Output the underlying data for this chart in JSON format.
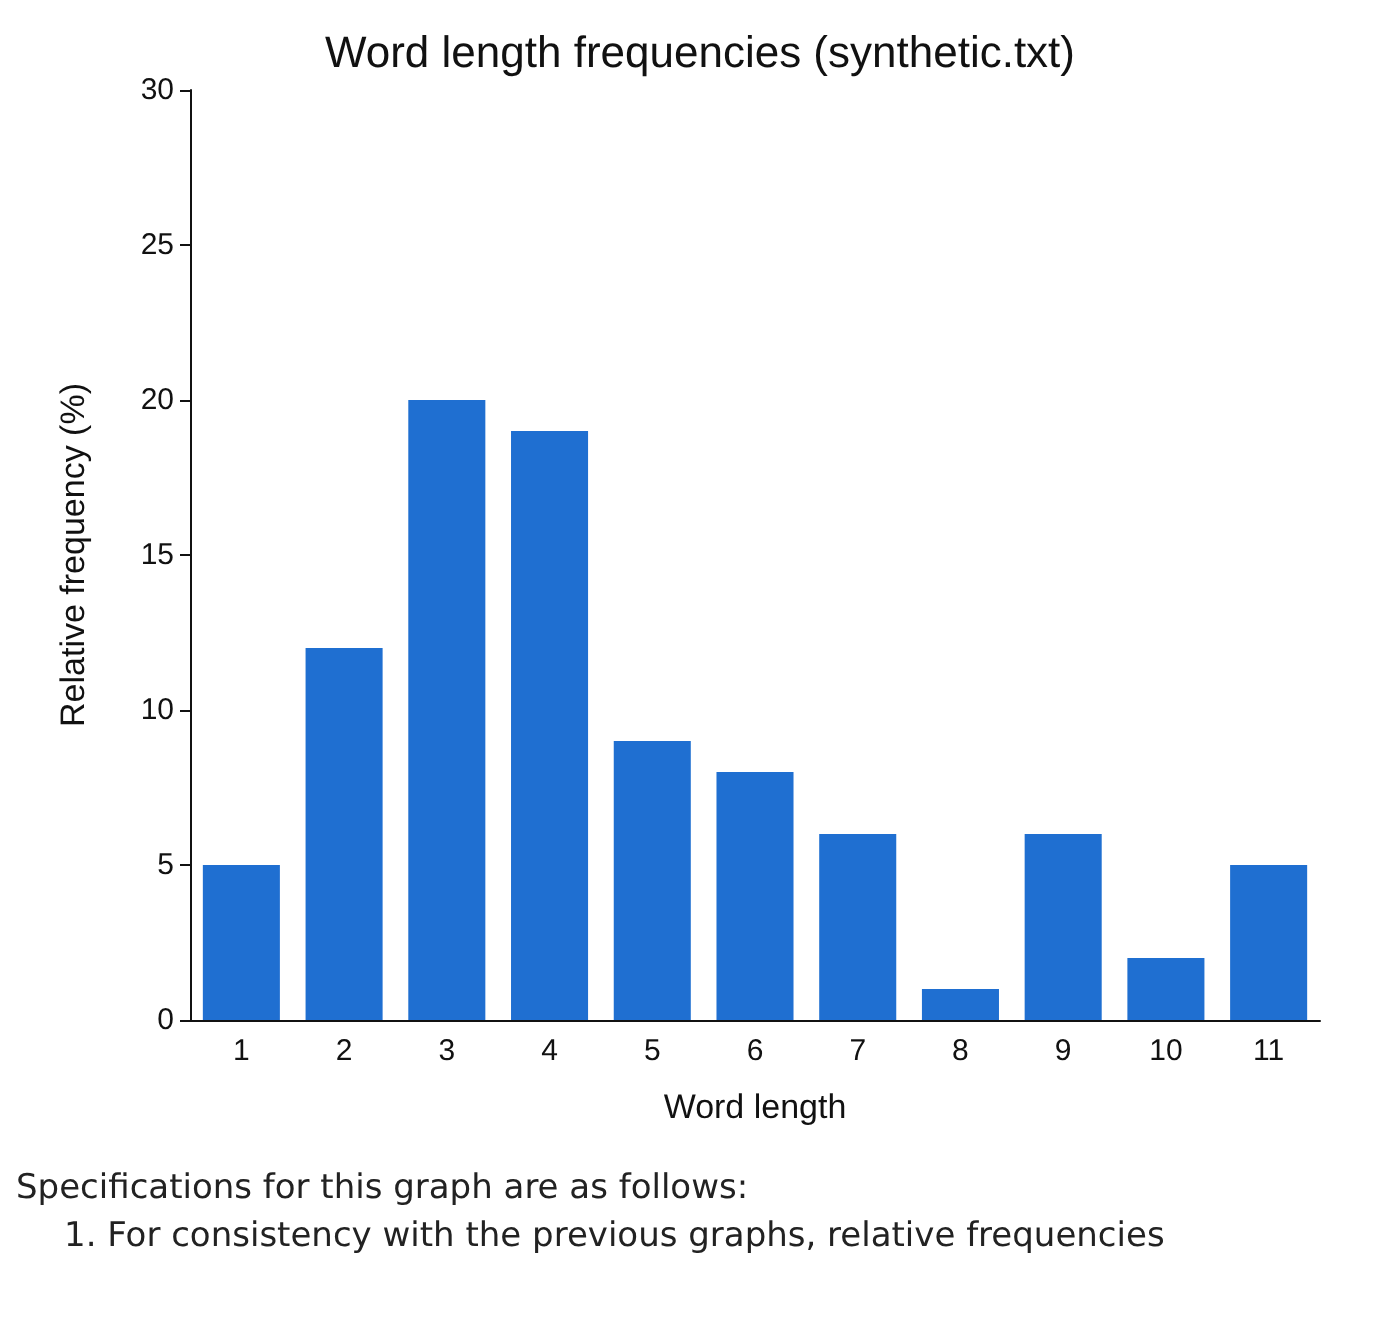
{
  "chart_data": {
    "type": "bar",
    "title": "Word length frequencies (synthetic.txt)",
    "xlabel": "Word length",
    "ylabel": "Relative frequency (%)",
    "categories": [
      "1",
      "2",
      "3",
      "4",
      "5",
      "6",
      "7",
      "8",
      "9",
      "10",
      "11"
    ],
    "values": [
      5,
      12,
      20,
      19,
      9,
      8,
      6,
      1,
      6,
      2,
      5
    ],
    "color": "#1f6fd1",
    "ylim": [
      0,
      30
    ],
    "yticks": [
      0,
      5,
      10,
      15,
      20,
      25,
      30
    ],
    "grid": false,
    "annotations": [
      "Specifications for this graph are as follows:",
      "1. For consistency with the previous graphs, relative frequencies"
    ]
  }
}
